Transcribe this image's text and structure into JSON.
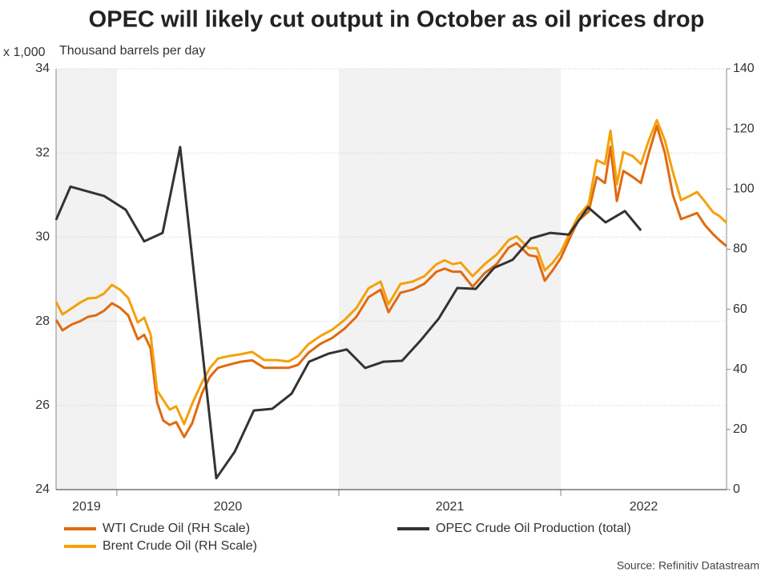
{
  "chart_data": {
    "type": "line",
    "title": "OPEC will likely cut output in October as oil prices drop",
    "y_unit_label": "x 1,000",
    "y_label": "Thousand barrels per day",
    "source": "Source: Refinitiv Datastream",
    "xlim": [
      2019.726,
      2022.747
    ],
    "xticks": [
      {
        "value": 2019,
        "label": "2019"
      },
      {
        "value": 2020,
        "label": "2020"
      },
      {
        "value": 2021,
        "label": "2021"
      },
      {
        "value": 2022,
        "label": "2022"
      }
    ],
    "ylim": [
      24,
      34
    ],
    "yticks": [
      24,
      26,
      28,
      30,
      32,
      34
    ],
    "y2lim": [
      0,
      140
    ],
    "y2ticks": [
      0,
      20,
      40,
      60,
      80,
      100,
      120,
      140
    ],
    "grid": true,
    "shade_alternate_years": true,
    "series": [
      {
        "name": "WTI Crude Oil (RH Scale)",
        "color": "#e06a10",
        "axis": "y2",
        "x": [
          2019.726,
          2019.755,
          2019.798,
          2019.834,
          2019.87,
          2019.906,
          2019.942,
          2019.978,
          2020.014,
          2020.051,
          2020.094,
          2020.123,
          2020.152,
          2020.181,
          2020.209,
          2020.238,
          2020.267,
          2020.303,
          2020.339,
          2020.383,
          2020.419,
          2020.455,
          2020.502,
          2020.556,
          2020.61,
          2020.664,
          2020.718,
          2020.773,
          2020.816,
          2020.863,
          2020.917,
          2020.971,
          2021.025,
          2021.079,
          2021.134,
          2021.188,
          2021.224,
          2021.278,
          2021.332,
          2021.386,
          2021.44,
          2021.477,
          2021.513,
          2021.549,
          2021.603,
          2021.657,
          2021.711,
          2021.765,
          2021.801,
          2021.856,
          2021.892,
          2021.928,
          2021.964,
          2022.0,
          2022.043,
          2022.079,
          2022.126,
          2022.162,
          2022.199,
          2022.224,
          2022.253,
          2022.282,
          2022.325,
          2022.361,
          2022.397,
          2022.433,
          2022.469,
          2022.505,
          2022.542,
          2022.578,
          2022.614,
          2022.65,
          2022.686,
          2022.715,
          2022.747
        ],
        "values": [
          56.5,
          53,
          55,
          56,
          57.5,
          58,
          59.5,
          62,
          60.5,
          58,
          50,
          51.5,
          47,
          29,
          23,
          21.5,
          22.5,
          17.5,
          22,
          32,
          37.5,
          40.5,
          41.5,
          42.5,
          43,
          40.5,
          40.5,
          40.5,
          41.5,
          45.5,
          48.5,
          50.5,
          53.5,
          57.5,
          64,
          66.5,
          59,
          65.5,
          66.5,
          68.5,
          72.5,
          73.5,
          72.5,
          72.5,
          67.5,
          72,
          75,
          80.5,
          82,
          78,
          77.5,
          69.5,
          73,
          77,
          84,
          89.5,
          92.5,
          104,
          102,
          114,
          96,
          106,
          104,
          102,
          112,
          121,
          112,
          98,
          90,
          91,
          92,
          88,
          85,
          83,
          81
        ]
      },
      {
        "name": "Brent Crude Oil (RH Scale)",
        "color": "#f5a00a",
        "axis": "y2",
        "x": [
          2019.726,
          2019.755,
          2019.798,
          2019.834,
          2019.87,
          2019.906,
          2019.942,
          2019.978,
          2020.014,
          2020.051,
          2020.094,
          2020.123,
          2020.152,
          2020.181,
          2020.209,
          2020.238,
          2020.267,
          2020.303,
          2020.339,
          2020.383,
          2020.419,
          2020.455,
          2020.502,
          2020.556,
          2020.61,
          2020.664,
          2020.718,
          2020.773,
          2020.816,
          2020.863,
          2020.917,
          2020.971,
          2021.025,
          2021.079,
          2021.134,
          2021.188,
          2021.224,
          2021.278,
          2021.332,
          2021.386,
          2021.44,
          2021.477,
          2021.513,
          2021.549,
          2021.603,
          2021.657,
          2021.711,
          2021.765,
          2021.801,
          2021.856,
          2021.892,
          2021.928,
          2021.964,
          2022.0,
          2022.043,
          2022.079,
          2022.126,
          2022.162,
          2022.199,
          2022.224,
          2022.253,
          2022.282,
          2022.325,
          2022.361,
          2022.397,
          2022.433,
          2022.469,
          2022.505,
          2022.542,
          2022.578,
          2022.614,
          2022.65,
          2022.686,
          2022.715,
          2022.747
        ],
        "values": [
          62.5,
          58.3,
          60.4,
          62.2,
          63.6,
          63.8,
          65.2,
          68.1,
          66.5,
          63.8,
          55.6,
          57.2,
          51.6,
          33.0,
          29.8,
          26.6,
          27.7,
          21.8,
          28.5,
          35.6,
          40.4,
          43.6,
          44.4,
          45.0,
          45.8,
          43.1,
          43.1,
          42.6,
          44.4,
          48.4,
          51.1,
          53.2,
          56.4,
          60.4,
          67.0,
          69.2,
          61.7,
          68.4,
          69.2,
          71.0,
          75.0,
          76.3,
          75.0,
          75.5,
          71.0,
          75.0,
          78.2,
          83.0,
          84.3,
          80.3,
          80.3,
          72.9,
          75.5,
          79.0,
          85.7,
          91.0,
          95.0,
          109.6,
          108.3,
          119.4,
          101.6,
          112.3,
          110.9,
          108.3,
          116.2,
          122.9,
          116.2,
          105.6,
          96.3,
          97.6,
          99.0,
          95.8,
          92.3,
          91.0,
          88.8
        ]
      },
      {
        "name": "OPEC Crude Oil Production (total)",
        "color": "#333333",
        "axis": "y",
        "x": [
          2019.726,
          2019.791,
          2019.942,
          2020.04,
          2020.123,
          2020.206,
          2020.285,
          2020.448,
          2020.531,
          2020.617,
          2020.7,
          2020.787,
          2020.866,
          2020.953,
          2021.036,
          2021.119,
          2021.202,
          2021.285,
          2021.368,
          2021.451,
          2021.534,
          2021.617,
          2021.7,
          2021.783,
          2021.866,
          2021.953,
          2022.036,
          2022.123,
          2022.202,
          2022.289,
          2022.361
        ],
        "values": [
          30.41,
          31.2,
          30.98,
          30.65,
          29.9,
          30.1,
          32.14,
          24.27,
          24.9,
          25.88,
          25.92,
          26.28,
          27.04,
          27.23,
          27.33,
          26.89,
          27.04,
          27.06,
          27.54,
          28.07,
          28.79,
          28.77,
          29.27,
          29.46,
          29.97,
          30.1,
          30.06,
          30.71,
          30.35,
          30.62,
          30.16
        ]
      }
    ]
  }
}
